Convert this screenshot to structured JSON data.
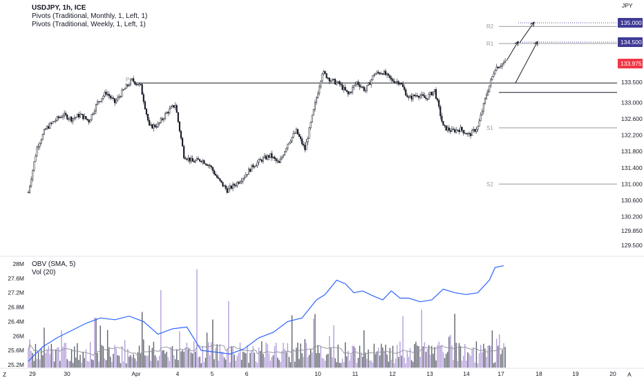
{
  "header": {
    "symbol_line": "USDJPY, 1h, ICE",
    "indicator_1": "Pivots (Traditional, Monthly, 1, Left, 1)",
    "indicator_2": "Pivots (Traditional, Weekly, 1, Left, 1)"
  },
  "sub_panel": {
    "indicator_1": "OBV (SMA, 5)",
    "indicator_2": "Vol (20)"
  },
  "currency": "JPY",
  "corner_labels": {
    "left": "Z",
    "right": "A"
  },
  "colors": {
    "up_candle": "#ffffff",
    "down_candle": "#131722",
    "obv": "#2962ff",
    "vol_up": "#b39ddb",
    "vol_down": "#5d606b",
    "vol_ma": "#9598a1",
    "tag_target": "#3f3a96",
    "tag_last": "#f23645"
  },
  "chart_data": [
    {
      "type": "candlestick",
      "symbol": "USDJPY",
      "interval": "1h",
      "yaxis": {
        "ticks": [
          "133.500",
          "133.000",
          "132.600",
          "132.200",
          "131.800",
          "131.400",
          "131.000",
          "130.600",
          "130.200",
          "129.850",
          "129.500"
        ],
        "ylim": [
          129.3,
          134.85
        ]
      },
      "xaxis_ticks": [
        "29",
        "30",
        "Apr",
        "4",
        "5",
        "6",
        "10",
        "11",
        "12",
        "13",
        "14",
        "17",
        "18",
        "19",
        "20"
      ],
      "price_tags": [
        {
          "label": "135.000",
          "role": "target"
        },
        {
          "label": "134.500",
          "role": "target"
        },
        {
          "label": "133.975",
          "role": "last"
        }
      ],
      "pivot_labels": {
        "monthly": [
          {
            "label": "P",
            "value": 133.48
          }
        ],
        "weekly": [
          {
            "label": "R2",
            "value": 134.87
          },
          {
            "label": "R1",
            "value": 134.45
          },
          {
            "label": "P",
            "value": 133.25
          },
          {
            "label": "S1",
            "value": 132.38
          },
          {
            "label": "S2",
            "value": 131.0
          }
        ]
      },
      "annotations": [
        "arrow",
        "arrow",
        "arrow"
      ],
      "close_path": [
        [
          0,
          130.8
        ],
        [
          6,
          131.9
        ],
        [
          12,
          132.35
        ],
        [
          18,
          132.55
        ],
        [
          24,
          132.7
        ],
        [
          30,
          132.6
        ],
        [
          36,
          132.7
        ],
        [
          42,
          132.55
        ],
        [
          48,
          133.0
        ],
        [
          54,
          133.25
        ],
        [
          60,
          133.0
        ],
        [
          66,
          133.3
        ],
        [
          72,
          133.55
        ],
        [
          78,
          133.4
        ],
        [
          84,
          132.4
        ],
        [
          90,
          132.45
        ],
        [
          96,
          132.75
        ],
        [
          102,
          132.95
        ],
        [
          108,
          131.7
        ],
        [
          114,
          131.55
        ],
        [
          120,
          131.6
        ],
        [
          126,
          131.45
        ],
        [
          132,
          131.1
        ],
        [
          138,
          130.85
        ],
        [
          144,
          131.0
        ],
        [
          150,
          131.2
        ],
        [
          156,
          131.45
        ],
        [
          162,
          131.6
        ],
        [
          168,
          131.7
        ],
        [
          174,
          131.5
        ],
        [
          180,
          132.0
        ],
        [
          186,
          132.3
        ],
        [
          192,
          131.85
        ],
        [
          198,
          132.8
        ],
        [
          204,
          133.75
        ],
        [
          210,
          133.55
        ],
        [
          216,
          133.45
        ],
        [
          222,
          133.2
        ],
        [
          228,
          133.5
        ],
        [
          234,
          133.3
        ],
        [
          240,
          133.7
        ],
        [
          246,
          133.75
        ],
        [
          252,
          133.55
        ],
        [
          258,
          133.5
        ],
        [
          264,
          133.1
        ],
        [
          270,
          133.2
        ],
        [
          276,
          133.1
        ],
        [
          282,
          133.3
        ],
        [
          288,
          132.4
        ],
        [
          294,
          132.3
        ],
        [
          300,
          132.35
        ],
        [
          306,
          132.2
        ],
        [
          312,
          132.4
        ],
        [
          318,
          133.2
        ],
        [
          324,
          133.85
        ],
        [
          330,
          133.975
        ]
      ]
    },
    {
      "type": "line+bar",
      "series": [
        {
          "name": "OBV (SMA, 5)"
        },
        {
          "name": "Vol (20)"
        }
      ],
      "yaxis": {
        "ticks": [
          "28M",
          "27.6M",
          "27.2M",
          "26.8M",
          "26.4M",
          "26M",
          "25.6M",
          "25.2M"
        ],
        "ylim": [
          25.15,
          28.15
        ]
      },
      "obv_path": [
        [
          0,
          25.3
        ],
        [
          10,
          25.7
        ],
        [
          20,
          25.95
        ],
        [
          30,
          26.15
        ],
        [
          40,
          26.35
        ],
        [
          50,
          26.5
        ],
        [
          60,
          26.45
        ],
        [
          70,
          26.55
        ],
        [
          80,
          26.4
        ],
        [
          90,
          26.05
        ],
        [
          100,
          26.2
        ],
        [
          110,
          26.25
        ],
        [
          120,
          25.6
        ],
        [
          130,
          25.55
        ],
        [
          140,
          25.5
        ],
        [
          150,
          25.65
        ],
        [
          160,
          25.95
        ],
        [
          170,
          26.1
        ],
        [
          180,
          26.4
        ],
        [
          190,
          26.5
        ],
        [
          200,
          27.0
        ],
        [
          206,
          27.15
        ],
        [
          214,
          27.55
        ],
        [
          220,
          27.45
        ],
        [
          226,
          27.2
        ],
        [
          232,
          27.25
        ],
        [
          240,
          27.1
        ],
        [
          246,
          27.0
        ],
        [
          252,
          27.25
        ],
        [
          258,
          27.05
        ],
        [
          264,
          27.05
        ],
        [
          272,
          26.95
        ],
        [
          280,
          27.0
        ],
        [
          288,
          27.3
        ],
        [
          296,
          27.2
        ],
        [
          304,
          27.15
        ],
        [
          312,
          27.2
        ],
        [
          320,
          27.55
        ],
        [
          324,
          27.9
        ],
        [
          330,
          27.95
        ]
      ]
    }
  ]
}
